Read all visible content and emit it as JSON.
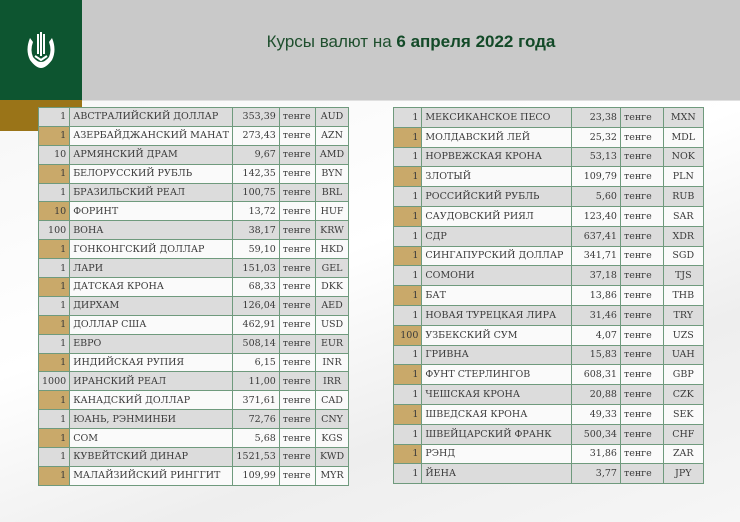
{
  "header": {
    "title_prefix": "Курсы валют на ",
    "title_date": "6 апреля 2022 года"
  },
  "colors": {
    "brand_green": "#0d5530",
    "gold": "#9a7418",
    "row_gold": "#c9a96a"
  },
  "left_table": [
    {
      "qty": "1",
      "name": "АВСТРАЛИЙСКИЙ ДОЛЛАР",
      "rate": "353,39",
      "unit": "тенге",
      "code": "AUD"
    },
    {
      "qty": "1",
      "name": "АЗЕРБАЙДЖАНСКИЙ МАНАТ",
      "rate": "273,43",
      "unit": "тенге",
      "code": "AZN"
    },
    {
      "qty": "10",
      "name": "АРМЯНСКИЙ  ДРАМ",
      "rate": "9,67",
      "unit": "тенге",
      "code": "AMD"
    },
    {
      "qty": "1",
      "name": "БЕЛОРУССКИЙ РУБЛЬ",
      "rate": "142,35",
      "unit": "тенге",
      "code": "BYN"
    },
    {
      "qty": "1",
      "name": "БРАЗИЛЬСКИЙ РЕАЛ",
      "rate": "100,75",
      "unit": "тенге",
      "code": "BRL"
    },
    {
      "qty": "10",
      "name": "ФОРИНТ",
      "rate": "13,72",
      "unit": "тенге",
      "code": "HUF"
    },
    {
      "qty": "100",
      "name": "ВОНА",
      "rate": "38,17",
      "unit": "тенге",
      "code": "KRW"
    },
    {
      "qty": "1",
      "name": "ГОНКОНГСКИЙ ДОЛЛАР",
      "rate": "59,10",
      "unit": "тенге",
      "code": "HKD"
    },
    {
      "qty": "1",
      "name": "ЛАРИ",
      "rate": "151,03",
      "unit": "тенге",
      "code": "GEL"
    },
    {
      "qty": "1",
      "name": "ДАТСКАЯ КРОНА",
      "rate": "68,33",
      "unit": "тенге",
      "code": "DKK"
    },
    {
      "qty": "1",
      "name": "ДИРХАМ",
      "rate": "126,04",
      "unit": "тенге",
      "code": "AED"
    },
    {
      "qty": "1",
      "name": "ДОЛЛАР США",
      "rate": "462,91",
      "unit": "тенге",
      "code": "USD"
    },
    {
      "qty": "1",
      "name": "ЕВРО",
      "rate": "508,14",
      "unit": "тенге",
      "code": "EUR"
    },
    {
      "qty": "1",
      "name": "ИНДИЙСКАЯ РУПИЯ",
      "rate": "6,15",
      "unit": "тенге",
      "code": "INR"
    },
    {
      "qty": "1000",
      "name": "ИРАНСКИЙ РЕАЛ",
      "rate": "11,00",
      "unit": "тенге",
      "code": "IRR"
    },
    {
      "qty": "1",
      "name": "КАНАДСКИЙ ДОЛЛАР",
      "rate": "371,61",
      "unit": "тенге",
      "code": "CAD"
    },
    {
      "qty": "1",
      "name": "ЮАНЬ, РЭНМИНБИ",
      "rate": "72,76",
      "unit": "тенге",
      "code": "CNY"
    },
    {
      "qty": "1",
      "name": "СОМ",
      "rate": "5,68",
      "unit": "тенге",
      "code": "KGS"
    },
    {
      "qty": "1",
      "name": "КУВЕЙТСКИЙ ДИНАР",
      "rate": "1521,53",
      "unit": "тенге",
      "code": "KWD"
    },
    {
      "qty": "1",
      "name": "МАЛАЙЗИЙСКИЙ РИНГГИТ",
      "rate": "109,99",
      "unit": "тенге",
      "code": "MYR"
    }
  ],
  "right_table": [
    {
      "qty": "1",
      "name": "МЕКСИКАНСКОЕ ПЕСО",
      "rate": "23,38",
      "unit": "тенге",
      "code": "MXN"
    },
    {
      "qty": "1",
      "name": "МОЛДАВСКИЙ ЛЕЙ",
      "rate": "25,32",
      "unit": "тенге",
      "code": "MDL"
    },
    {
      "qty": "1",
      "name": "НОРВЕЖСКАЯ КРОНА",
      "rate": "53,13",
      "unit": "тенге",
      "code": "NOK"
    },
    {
      "qty": "1",
      "name": "ЗЛОТЫЙ",
      "rate": "109,79",
      "unit": "тенге",
      "code": "PLN"
    },
    {
      "qty": "1",
      "name": "РОССИЙСКИЙ РУБЛЬ",
      "rate": "5,60",
      "unit": "тенге",
      "code": "RUB"
    },
    {
      "qty": "1",
      "name": "САУДОВСКИЙ РИЯЛ",
      "rate": "123,40",
      "unit": "тенге",
      "code": "SAR"
    },
    {
      "qty": "1",
      "name": "СДР",
      "rate": "637,41",
      "unit": "тенге",
      "code": "XDR"
    },
    {
      "qty": "1",
      "name": "СИНГАПУРСКИЙ ДОЛЛАР",
      "rate": "341,71",
      "unit": "тенге",
      "code": "SGD"
    },
    {
      "qty": "1",
      "name": "СОМОНИ",
      "rate": "37,18",
      "unit": "тенге",
      "code": "TJS"
    },
    {
      "qty": "1",
      "name": "БАТ",
      "rate": "13,86",
      "unit": "тенге",
      "code": "THB"
    },
    {
      "qty": "1",
      "name": "НОВАЯ ТУРЕЦКАЯ ЛИРА",
      "rate": "31,46",
      "unit": "тенге",
      "code": "TRY"
    },
    {
      "qty": "100",
      "name": "УЗБЕКСКИЙ СУМ",
      "rate": "4,07",
      "unit": "тенге",
      "code": "UZS"
    },
    {
      "qty": "1",
      "name": "ГРИВНА",
      "rate": "15,83",
      "unit": "тенге",
      "code": "UAH"
    },
    {
      "qty": "1",
      "name": "ФУНТ СТЕРЛИНГОВ",
      "rate": "608,31",
      "unit": "тенге",
      "code": "GBP"
    },
    {
      "qty": "1",
      "name": "ЧЕШСКАЯ КРОНА",
      "rate": "20,88",
      "unit": "тенге",
      "code": "CZK"
    },
    {
      "qty": "1",
      "name": "ШВЕДСКАЯ КРОНА",
      "rate": "49,33",
      "unit": "тенге",
      "code": "SEK"
    },
    {
      "qty": "1",
      "name": "ШВЕЙЦАРСКИЙ ФРАНК",
      "rate": "500,34",
      "unit": "тенге",
      "code": "CHF"
    },
    {
      "qty": "1",
      "name": "РЭНД",
      "rate": "31,86",
      "unit": "тенге",
      "code": "ZAR"
    },
    {
      "qty": "1",
      "name": "ЙЕНА",
      "rate": "3,77",
      "unit": "тенге",
      "code": "JPY"
    }
  ]
}
